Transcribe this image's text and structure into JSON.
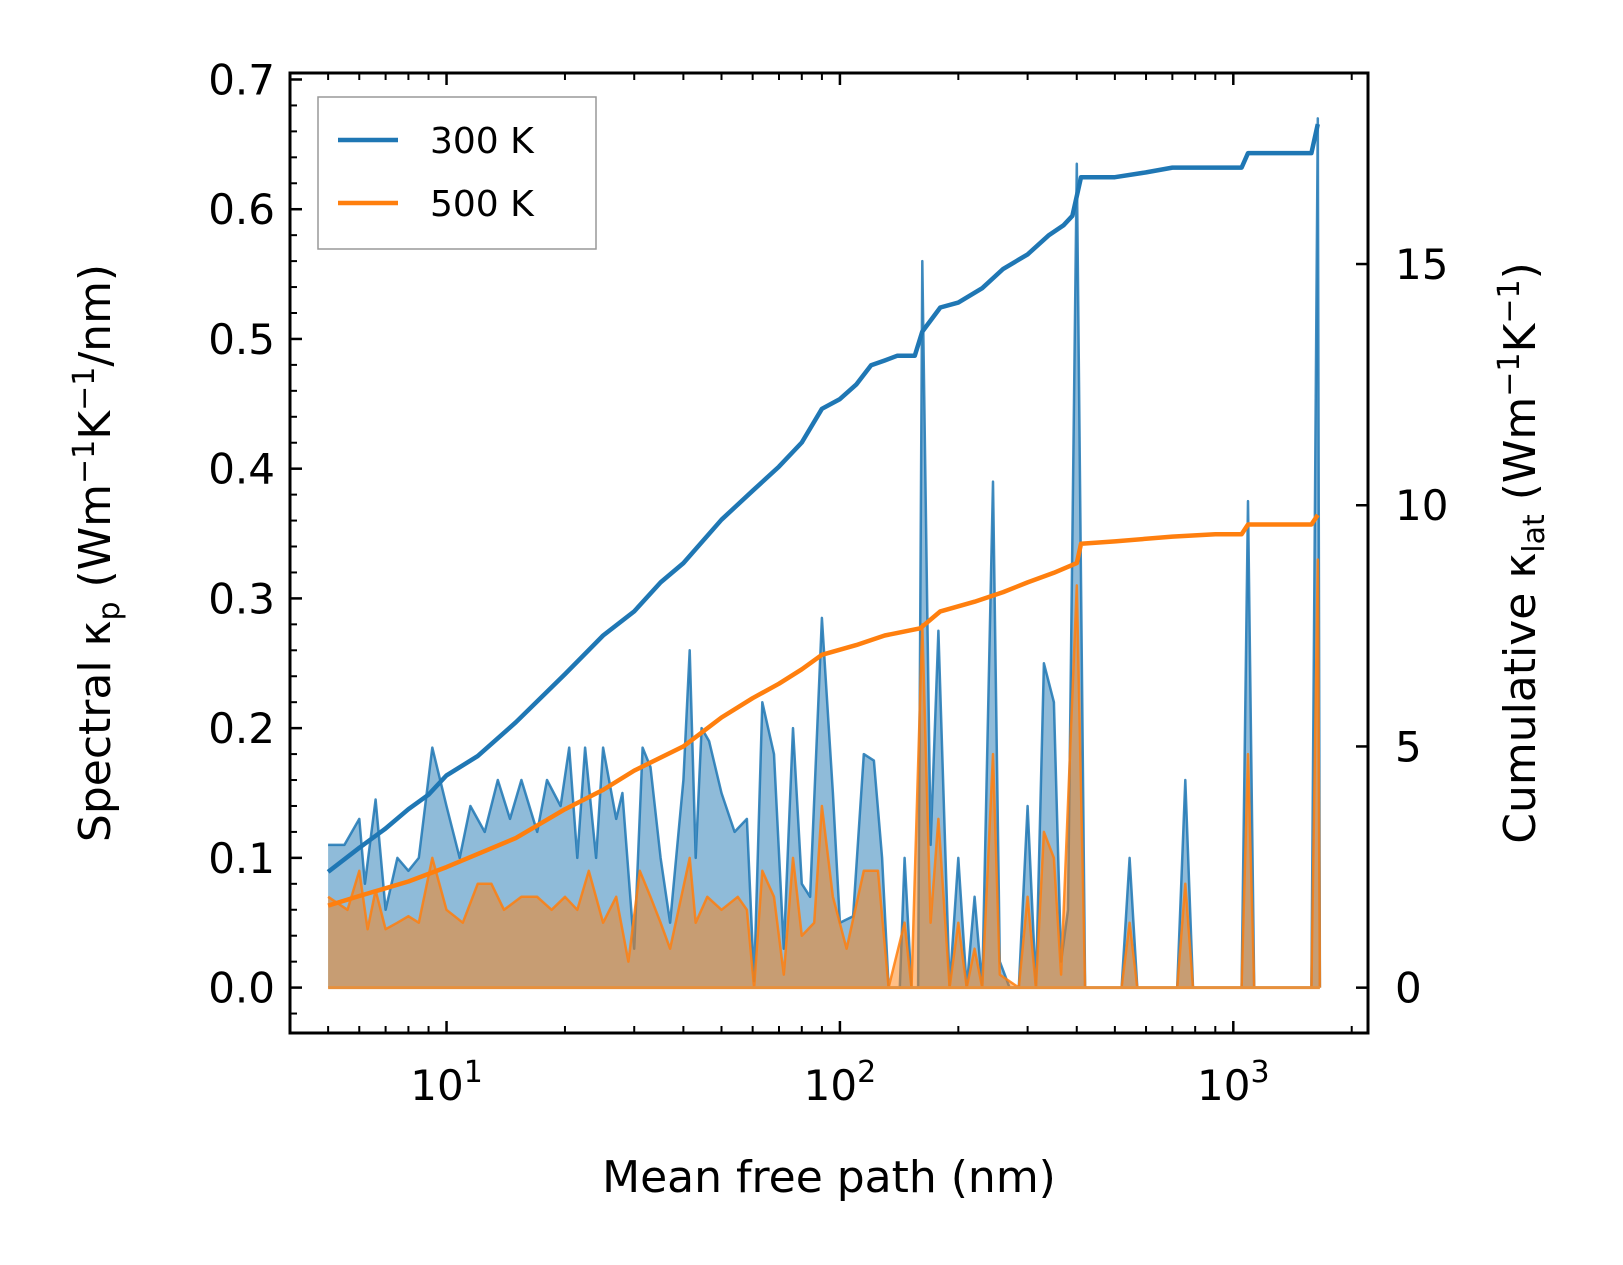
{
  "chart_data": {
    "type": "line",
    "xscale": "log",
    "xlim": [
      4,
      2200
    ],
    "ylim_left": [
      -0.035,
      0.705
    ],
    "ylim_right": [
      -0.94,
      18.96
    ],
    "xlabel": "Mean free path (nm)",
    "ylabel_left": "Spectral κp (Wm⁻¹K⁻¹/nm)",
    "ylabel_right": "Cumulative κlat (Wm⁻¹K⁻¹)",
    "ylabel_left_parts": {
      "a": "Spectral κ",
      "sub": "p",
      "b": " (Wm",
      "s1": "−1",
      "c": "K",
      "s2": "−1",
      "d": "/nm)"
    },
    "ylabel_right_parts": {
      "a": "Cumulative κ",
      "sub": "lat",
      "b": " (Wm",
      "s1": "−1",
      "c": "K",
      "s2": "−1",
      "d": ")"
    },
    "x_ticks": [
      {
        "value": 10,
        "base": "10",
        "exp": "1"
      },
      {
        "value": 100,
        "base": "10",
        "exp": "2"
      },
      {
        "value": 1000,
        "base": "10",
        "exp": "3"
      }
    ],
    "y_left_ticks": [
      "0.0",
      "0.1",
      "0.2",
      "0.3",
      "0.4",
      "0.5",
      "0.6",
      "0.7"
    ],
    "y_right_ticks": [
      "0",
      "5",
      "10",
      "15"
    ],
    "legend": {
      "position": "top-left",
      "entries": [
        {
          "name": "300 K",
          "color": "#1f77b4"
        },
        {
          "name": "500 K",
          "color": "#ff7f0e"
        }
      ]
    },
    "spectral": [
      {
        "name": "300 K",
        "color": "#1f77b4",
        "fill_alpha": 0.5,
        "points": [
          [
            5,
            0.11
          ],
          [
            5.5,
            0.11
          ],
          [
            6,
            0.13
          ],
          [
            6.2,
            0.08
          ],
          [
            6.6,
            0.145
          ],
          [
            7,
            0.06
          ],
          [
            7.5,
            0.1
          ],
          [
            8,
            0.09
          ],
          [
            8.5,
            0.1
          ],
          [
            9.2,
            0.185
          ],
          [
            10,
            0.14
          ],
          [
            10.8,
            0.1
          ],
          [
            11.5,
            0.14
          ],
          [
            12.5,
            0.12
          ],
          [
            13.5,
            0.16
          ],
          [
            14.5,
            0.13
          ],
          [
            15.5,
            0.16
          ],
          [
            17,
            0.12
          ],
          [
            18,
            0.16
          ],
          [
            19.5,
            0.14
          ],
          [
            20.5,
            0.185
          ],
          [
            21.5,
            0.1
          ],
          [
            22.5,
            0.185
          ],
          [
            24,
            0.1
          ],
          [
            25,
            0.185
          ],
          [
            27,
            0.13
          ],
          [
            28,
            0.15
          ],
          [
            30,
            0.03
          ],
          [
            31.5,
            0.185
          ],
          [
            33,
            0.17
          ],
          [
            35,
            0.1
          ],
          [
            37,
            0.05
          ],
          [
            40,
            0.16
          ],
          [
            41.5,
            0.26
          ],
          [
            43,
            0.1
          ],
          [
            44.5,
            0.2
          ],
          [
            46.5,
            0.19
          ],
          [
            50,
            0.15
          ],
          [
            54,
            0.12
          ],
          [
            58,
            0.13
          ],
          [
            60.5,
            0.005
          ],
          [
            63.5,
            0.22
          ],
          [
            68,
            0.18
          ],
          [
            72,
            0.03
          ],
          [
            76,
            0.2
          ],
          [
            80,
            0.08
          ],
          [
            84,
            0.07
          ],
          [
            90,
            0.285
          ],
          [
            96,
            0.15
          ],
          [
            100,
            0.05
          ],
          [
            108,
            0.055
          ],
          [
            115,
            0.18
          ],
          [
            122,
            0.175
          ],
          [
            128,
            0.1
          ],
          [
            133,
            0.0
          ],
          [
            142,
            0.0
          ],
          [
            146,
            0.1
          ],
          [
            152,
            0.0
          ],
          [
            158,
            0.0
          ],
          [
            162,
            0.56
          ],
          [
            170,
            0.11
          ],
          [
            178,
            0.275
          ],
          [
            190,
            0.0
          ],
          [
            200,
            0.1
          ],
          [
            210,
            0.0
          ],
          [
            220,
            0.07
          ],
          [
            230,
            0.0
          ],
          [
            245,
            0.39
          ],
          [
            255,
            0.02
          ],
          [
            270,
            0.0
          ],
          [
            285,
            0.0
          ],
          [
            300,
            0.14
          ],
          [
            315,
            0.0
          ],
          [
            330,
            0.25
          ],
          [
            350,
            0.22
          ],
          [
            365,
            0.02
          ],
          [
            380,
            0.06
          ],
          [
            400,
            0.635
          ],
          [
            420,
            0.0
          ],
          [
            450,
            0.0
          ],
          [
            520,
            0.0
          ],
          [
            545,
            0.1
          ],
          [
            570,
            0.0
          ],
          [
            720,
            0.0
          ],
          [
            755,
            0.16
          ],
          [
            790,
            0.0
          ],
          [
            1050,
            0.0
          ],
          [
            1090,
            0.375
          ],
          [
            1130,
            0.0
          ],
          [
            1580,
            0.0
          ],
          [
            1640,
            0.67
          ],
          [
            1660,
            0.0
          ]
        ]
      },
      {
        "name": "500 K",
        "color": "#ff7f0e",
        "fill_alpha": 0.5,
        "points": [
          [
            5,
            0.07
          ],
          [
            5.6,
            0.06
          ],
          [
            6,
            0.09
          ],
          [
            6.3,
            0.045
          ],
          [
            6.6,
            0.075
          ],
          [
            7,
            0.045
          ],
          [
            7.5,
            0.05
          ],
          [
            8,
            0.055
          ],
          [
            8.5,
            0.05
          ],
          [
            9.2,
            0.1
          ],
          [
            10,
            0.06
          ],
          [
            11,
            0.05
          ],
          [
            12,
            0.08
          ],
          [
            13,
            0.08
          ],
          [
            14,
            0.06
          ],
          [
            15.5,
            0.07
          ],
          [
            17,
            0.07
          ],
          [
            18.5,
            0.06
          ],
          [
            20,
            0.07
          ],
          [
            21.5,
            0.06
          ],
          [
            23,
            0.09
          ],
          [
            25,
            0.05
          ],
          [
            27,
            0.07
          ],
          [
            29,
            0.02
          ],
          [
            31,
            0.09
          ],
          [
            33,
            0.07
          ],
          [
            35,
            0.05
          ],
          [
            37,
            0.03
          ],
          [
            41.5,
            0.1
          ],
          [
            43,
            0.05
          ],
          [
            46,
            0.07
          ],
          [
            50,
            0.06
          ],
          [
            55,
            0.07
          ],
          [
            58,
            0.06
          ],
          [
            60.5,
            0.0
          ],
          [
            63.5,
            0.09
          ],
          [
            68,
            0.07
          ],
          [
            72,
            0.01
          ],
          [
            76,
            0.1
          ],
          [
            80,
            0.04
          ],
          [
            86,
            0.05
          ],
          [
            90,
            0.14
          ],
          [
            96,
            0.07
          ],
          [
            104,
            0.03
          ],
          [
            115,
            0.09
          ],
          [
            125,
            0.09
          ],
          [
            133,
            0.0
          ],
          [
            146,
            0.05
          ],
          [
            152,
            0.0
          ],
          [
            162,
            0.28
          ],
          [
            170,
            0.05
          ],
          [
            178,
            0.13
          ],
          [
            190,
            0.0
          ],
          [
            200,
            0.05
          ],
          [
            210,
            0.0
          ],
          [
            220,
            0.03
          ],
          [
            230,
            0.0
          ],
          [
            245,
            0.18
          ],
          [
            255,
            0.01
          ],
          [
            285,
            0.0
          ],
          [
            300,
            0.07
          ],
          [
            315,
            0.0
          ],
          [
            330,
            0.12
          ],
          [
            350,
            0.1
          ],
          [
            365,
            0.01
          ],
          [
            400,
            0.31
          ],
          [
            420,
            0.0
          ],
          [
            520,
            0.0
          ],
          [
            545,
            0.05
          ],
          [
            570,
            0.0
          ],
          [
            720,
            0.0
          ],
          [
            755,
            0.08
          ],
          [
            790,
            0.0
          ],
          [
            1050,
            0.0
          ],
          [
            1090,
            0.18
          ],
          [
            1130,
            0.0
          ],
          [
            1580,
            0.0
          ],
          [
            1640,
            0.33
          ],
          [
            1660,
            0.0
          ]
        ]
      }
    ],
    "cumulative": [
      {
        "name": "300 K",
        "color": "#1f77b4",
        "points": [
          [
            5,
            2.4
          ],
          [
            6,
            2.9
          ],
          [
            7,
            3.3
          ],
          [
            8,
            3.7
          ],
          [
            9,
            4.0
          ],
          [
            10,
            4.4
          ],
          [
            12,
            4.8
          ],
          [
            15,
            5.5
          ],
          [
            20,
            6.5
          ],
          [
            25,
            7.3
          ],
          [
            30,
            7.8
          ],
          [
            35,
            8.4
          ],
          [
            40,
            8.8
          ],
          [
            50,
            9.7
          ],
          [
            60,
            10.3
          ],
          [
            70,
            10.8
          ],
          [
            80,
            11.3
          ],
          [
            90,
            12.0
          ],
          [
            100,
            12.2
          ],
          [
            110,
            12.5
          ],
          [
            120,
            12.9
          ],
          [
            130,
            13.0
          ],
          [
            140,
            13.1
          ],
          [
            155,
            13.1
          ],
          [
            162,
            13.6
          ],
          [
            180,
            14.1
          ],
          [
            200,
            14.2
          ],
          [
            230,
            14.5
          ],
          [
            260,
            14.9
          ],
          [
            300,
            15.2
          ],
          [
            340,
            15.6
          ],
          [
            370,
            15.8
          ],
          [
            390,
            16.0
          ],
          [
            410,
            16.8
          ],
          [
            500,
            16.8
          ],
          [
            600,
            16.9
          ],
          [
            700,
            17.0
          ],
          [
            900,
            17.0
          ],
          [
            1050,
            17.0
          ],
          [
            1090,
            17.3
          ],
          [
            1580,
            17.3
          ],
          [
            1640,
            17.9
          ]
        ]
      },
      {
        "name": "500 K",
        "color": "#ff7f0e",
        "points": [
          [
            5,
            1.7
          ],
          [
            6,
            1.9
          ],
          [
            8,
            2.2
          ],
          [
            10,
            2.5
          ],
          [
            15,
            3.1
          ],
          [
            20,
            3.7
          ],
          [
            25,
            4.1
          ],
          [
            30,
            4.5
          ],
          [
            40,
            5.0
          ],
          [
            50,
            5.6
          ],
          [
            60,
            6.0
          ],
          [
            70,
            6.3
          ],
          [
            80,
            6.6
          ],
          [
            90,
            6.9
          ],
          [
            110,
            7.1
          ],
          [
            130,
            7.3
          ],
          [
            160,
            7.45
          ],
          [
            180,
            7.8
          ],
          [
            220,
            8.0
          ],
          [
            260,
            8.2
          ],
          [
            300,
            8.4
          ],
          [
            350,
            8.6
          ],
          [
            400,
            8.8
          ],
          [
            410,
            9.2
          ],
          [
            500,
            9.25
          ],
          [
            700,
            9.35
          ],
          [
            900,
            9.4
          ],
          [
            1050,
            9.4
          ],
          [
            1090,
            9.6
          ],
          [
            1580,
            9.6
          ],
          [
            1640,
            9.8
          ]
        ]
      }
    ]
  }
}
